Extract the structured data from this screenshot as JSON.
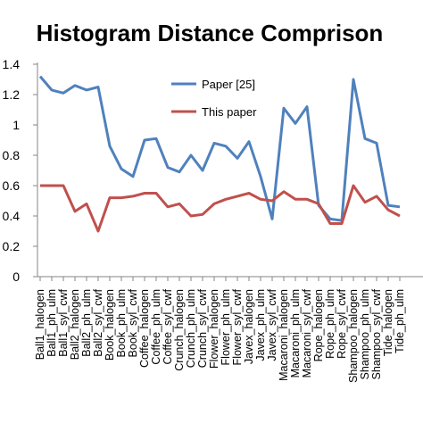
{
  "chart_data": {
    "type": "line",
    "title": "Histogram Distance Comprison",
    "xlabel": "",
    "ylabel": "",
    "ylim": [
      0,
      1.4
    ],
    "yticks": [
      "0",
      "0.2",
      "0.4",
      "0.6",
      "0.8",
      "1",
      "1.2",
      "1.4"
    ],
    "grid": false,
    "legend_position": "top-right",
    "categories": [
      "Ball1_halogen",
      "Ball1_ph_ulm",
      "Ball1_syl_cwf",
      "Ball2_halogen",
      "Ball2_ph_ulm",
      "Ball2_syl_cwf",
      "Book_halogen",
      "Book_ph_ulm",
      "Book_syl_cwf",
      "Coffee_halogen",
      "Coffee_ph_ulm",
      "Coffee_syl_cwf",
      "Crunch_halogen",
      "Crunch_ph_ulm",
      "Crunch_syl_cwf",
      "Flower_halogen",
      "Flower_ph_ulm",
      "Flower_syl_cwf",
      "Javex_halogen",
      "Javex_ph_ulm",
      "Javex_syl_cwf",
      "Macaroni_halogen",
      "Macaroni_ph_ulm",
      "Macaroni_syl_cwf",
      "Rope_halogen",
      "Rope_ph_ulm",
      "Rope_syl_cwf",
      "Shampoo_halogen",
      "Shampoo_ph_ulm",
      "Shampoo_syl_cwf",
      "Tide_halogen",
      "Tide_ph_ulm"
    ],
    "series": [
      {
        "name": "Paper [25]",
        "color": "#4F81BD",
        "values": [
          1.32,
          1.23,
          1.21,
          1.26,
          1.23,
          1.25,
          0.86,
          0.71,
          0.66,
          0.9,
          0.91,
          0.72,
          0.69,
          0.8,
          0.7,
          0.88,
          0.86,
          0.78,
          0.89,
          0.66,
          0.38,
          1.11,
          1.01,
          1.12,
          0.47,
          0.38,
          0.37,
          1.3,
          0.91,
          0.88,
          0.47,
          0.46
        ]
      },
      {
        "name": "This paper",
        "color": "#C0504D",
        "values": [
          0.6,
          0.6,
          0.6,
          0.43,
          0.48,
          0.3,
          0.52,
          0.52,
          0.53,
          0.55,
          0.55,
          0.46,
          0.48,
          0.4,
          0.41,
          0.48,
          0.51,
          0.53,
          0.55,
          0.51,
          0.5,
          0.56,
          0.51,
          0.51,
          0.48,
          0.35,
          0.35,
          0.6,
          0.49,
          0.53,
          0.44,
          0.4
        ]
      }
    ]
  }
}
